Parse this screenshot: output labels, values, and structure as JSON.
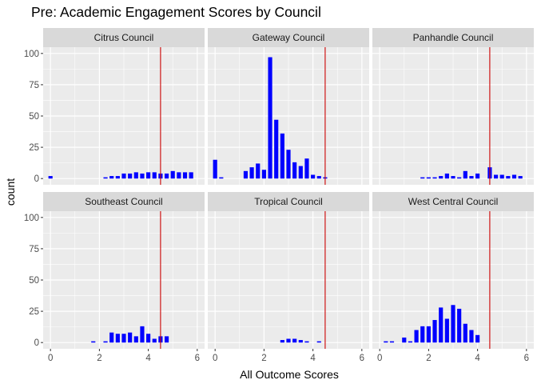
{
  "chart_data": {
    "type": "bar",
    "title": "Pre: Academic Engagement Scores by Council",
    "xlabel": "All Outcome Scores",
    "ylabel": "count",
    "xlim": [
      -0.3,
      6.3
    ],
    "ylim": [
      -5,
      105
    ],
    "x_ticks": [
      0,
      2,
      4,
      6
    ],
    "y_ticks": [
      0,
      25,
      50,
      75,
      100
    ],
    "reference_line_x": 4.5,
    "colors": {
      "bar": "#0000ff",
      "reference_line": "#cc0000",
      "panel_bg": "#ebebeb",
      "strip_bg": "#d9d9d9",
      "grid": "#ffffff"
    },
    "grid": true,
    "facets": [
      {
        "name": "Citrus Council",
        "bars": [
          {
            "x": 0.0,
            "y": 2
          },
          {
            "x": 2.25,
            "y": 1
          },
          {
            "x": 2.5,
            "y": 2
          },
          {
            "x": 2.75,
            "y": 2
          },
          {
            "x": 3.0,
            "y": 4
          },
          {
            "x": 3.25,
            "y": 4
          },
          {
            "x": 3.5,
            "y": 5
          },
          {
            "x": 3.75,
            "y": 4
          },
          {
            "x": 4.0,
            "y": 5
          },
          {
            "x": 4.25,
            "y": 5
          },
          {
            "x": 4.5,
            "y": 4
          },
          {
            "x": 4.75,
            "y": 4
          },
          {
            "x": 5.0,
            "y": 6
          },
          {
            "x": 5.25,
            "y": 5
          },
          {
            "x": 5.5,
            "y": 5
          },
          {
            "x": 5.75,
            "y": 5
          }
        ]
      },
      {
        "name": "Gateway Council",
        "bars": [
          {
            "x": 0.0,
            "y": 15
          },
          {
            "x": 0.25,
            "y": 1
          },
          {
            "x": 1.25,
            "y": 6
          },
          {
            "x": 1.5,
            "y": 9
          },
          {
            "x": 1.75,
            "y": 12
          },
          {
            "x": 2.0,
            "y": 7
          },
          {
            "x": 2.25,
            "y": 97
          },
          {
            "x": 2.5,
            "y": 47
          },
          {
            "x": 2.75,
            "y": 36
          },
          {
            "x": 3.0,
            "y": 23
          },
          {
            "x": 3.25,
            "y": 13
          },
          {
            "x": 3.5,
            "y": 10
          },
          {
            "x": 3.75,
            "y": 16
          },
          {
            "x": 4.0,
            "y": 3
          },
          {
            "x": 4.25,
            "y": 2
          },
          {
            "x": 4.5,
            "y": 1
          }
        ]
      },
      {
        "name": "Panhandle Council",
        "bars": [
          {
            "x": 1.75,
            "y": 1
          },
          {
            "x": 2.0,
            "y": 1
          },
          {
            "x": 2.25,
            "y": 1
          },
          {
            "x": 2.5,
            "y": 2
          },
          {
            "x": 2.75,
            "y": 4
          },
          {
            "x": 3.0,
            "y": 2
          },
          {
            "x": 3.25,
            "y": 1
          },
          {
            "x": 3.5,
            "y": 6
          },
          {
            "x": 3.75,
            "y": 2
          },
          {
            "x": 4.0,
            "y": 4
          },
          {
            "x": 4.5,
            "y": 9
          },
          {
            "x": 4.75,
            "y": 3
          },
          {
            "x": 5.0,
            "y": 3
          },
          {
            "x": 5.25,
            "y": 2
          },
          {
            "x": 5.5,
            "y": 3
          },
          {
            "x": 5.75,
            "y": 2
          }
        ]
      },
      {
        "name": "Southeast Council",
        "bars": [
          {
            "x": 1.75,
            "y": 1
          },
          {
            "x": 2.25,
            "y": 1
          },
          {
            "x": 2.5,
            "y": 8
          },
          {
            "x": 2.75,
            "y": 7
          },
          {
            "x": 3.0,
            "y": 7
          },
          {
            "x": 3.25,
            "y": 8
          },
          {
            "x": 3.5,
            "y": 5
          },
          {
            "x": 3.75,
            "y": 13
          },
          {
            "x": 4.0,
            "y": 7
          },
          {
            "x": 4.25,
            "y": 3
          },
          {
            "x": 4.5,
            "y": 5
          },
          {
            "x": 4.75,
            "y": 5
          }
        ]
      },
      {
        "name": "Tropical Council",
        "bars": [
          {
            "x": 2.75,
            "y": 2
          },
          {
            "x": 3.0,
            "y": 3
          },
          {
            "x": 3.25,
            "y": 3
          },
          {
            "x": 3.5,
            "y": 2
          },
          {
            "x": 3.75,
            "y": 1
          },
          {
            "x": 4.25,
            "y": 1
          }
        ]
      },
      {
        "name": "West Central Council",
        "bars": [
          {
            "x": 0.25,
            "y": 1
          },
          {
            "x": 0.5,
            "y": 1
          },
          {
            "x": 1.0,
            "y": 4
          },
          {
            "x": 1.25,
            "y": 1
          },
          {
            "x": 1.5,
            "y": 10
          },
          {
            "x": 1.75,
            "y": 13
          },
          {
            "x": 2.0,
            "y": 13
          },
          {
            "x": 2.25,
            "y": 18
          },
          {
            "x": 2.5,
            "y": 28
          },
          {
            "x": 2.75,
            "y": 19
          },
          {
            "x": 3.0,
            "y": 30
          },
          {
            "x": 3.25,
            "y": 27
          },
          {
            "x": 3.5,
            "y": 15
          },
          {
            "x": 3.75,
            "y": 10
          },
          {
            "x": 4.0,
            "y": 6
          }
        ]
      }
    ]
  }
}
